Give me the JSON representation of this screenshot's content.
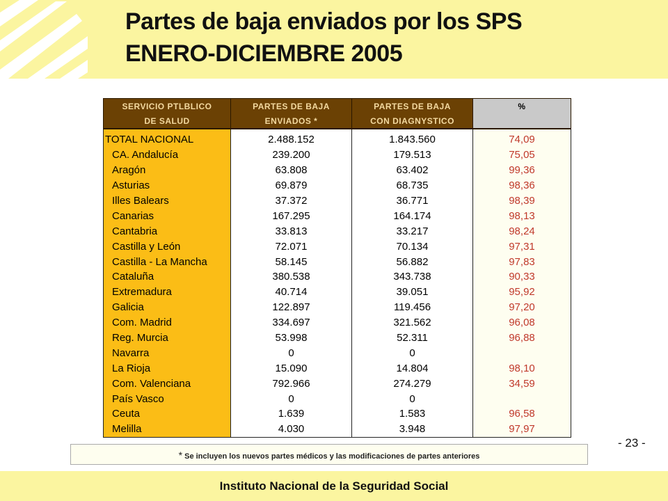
{
  "header": {
    "title_line1": "Partes de baja enviados por los SPS",
    "title_line2": "ENERO-DICIEMBRE 2005"
  },
  "table": {
    "columns": [
      {
        "line1": "SERVICIO PTLBLICO",
        "line2": "DE SALUD"
      },
      {
        "line1": "PARTES DE BAJA",
        "line2": "ENVIADOS *"
      },
      {
        "line1": "PARTES DE BAJA",
        "line2": "CON DIAGNYSTICO"
      },
      {
        "line1": "%",
        "line2": ""
      }
    ],
    "rows": [
      {
        "name": "TOTAL NACIONAL",
        "enviados": "2.488.152",
        "con_diagnostico": "1.843.560",
        "pct": "74,09"
      },
      {
        "name": "CA. Andalucía",
        "enviados": "239.200",
        "con_diagnostico": "179.513",
        "pct": "75,05"
      },
      {
        "name": "Aragón",
        "enviados": "63.808",
        "con_diagnostico": "63.402",
        "pct": "99,36"
      },
      {
        "name": "Asturias",
        "enviados": "69.879",
        "con_diagnostico": "68.735",
        "pct": "98,36"
      },
      {
        "name": "Illes Balears",
        "enviados": "37.372",
        "con_diagnostico": "36.771",
        "pct": "98,39"
      },
      {
        "name": "Canarias",
        "enviados": "167.295",
        "con_diagnostico": "164.174",
        "pct": "98,13"
      },
      {
        "name": "Cantabria",
        "enviados": "33.813",
        "con_diagnostico": "33.217",
        "pct": "98,24"
      },
      {
        "name": "Castilla y León",
        "enviados": "72.071",
        "con_diagnostico": "70.134",
        "pct": "97,31"
      },
      {
        "name": "Castilla - La Mancha",
        "enviados": "58.145",
        "con_diagnostico": "56.882",
        "pct": "97,83"
      },
      {
        "name": "Cataluña",
        "enviados": "380.538",
        "con_diagnostico": "343.738",
        "pct": "90,33"
      },
      {
        "name": "Extremadura",
        "enviados": "40.714",
        "con_diagnostico": "39.051",
        "pct": "95,92"
      },
      {
        "name": "Galicia",
        "enviados": "122.897",
        "con_diagnostico": "119.456",
        "pct": "97,20"
      },
      {
        "name": "Com. Madrid",
        "enviados": "334.697",
        "con_diagnostico": "321.562",
        "pct": "96,08"
      },
      {
        "name": "Reg. Murcia",
        "enviados": "53.998",
        "con_diagnostico": "52.311",
        "pct": "96,88"
      },
      {
        "name": "Navarra",
        "enviados": "0",
        "con_diagnostico": "0",
        "pct": ""
      },
      {
        "name": "La Rioja",
        "enviados": "15.090",
        "con_diagnostico": "14.804",
        "pct": "98,10"
      },
      {
        "name": "Com. Valenciana",
        "enviados": "792.966",
        "con_diagnostico": "274.279",
        "pct": "34,59"
      },
      {
        "name": "País Vasco",
        "enviados": "0",
        "con_diagnostico": "0",
        "pct": ""
      },
      {
        "name": "Ceuta",
        "enviados": "1.639",
        "con_diagnostico": "1.583",
        "pct": "96,58"
      },
      {
        "name": "Melilla",
        "enviados": "4.030",
        "con_diagnostico": "3.948",
        "pct": "97,97"
      }
    ]
  },
  "page_number": "- 23 -",
  "footnote": {
    "marker": "*",
    "text": "Se incluyen los nuevos partes médicos y  las modificaciones de partes anteriores"
  },
  "footer": {
    "institution": "Instituto Nacional de la Seguridad Social"
  },
  "colors": {
    "band": "#fbf5a0",
    "header_brown": "#6b4104",
    "name_column": "#fbbd16",
    "percent_text": "#c0392b"
  },
  "icons": {
    "logo": "inss-logo"
  }
}
